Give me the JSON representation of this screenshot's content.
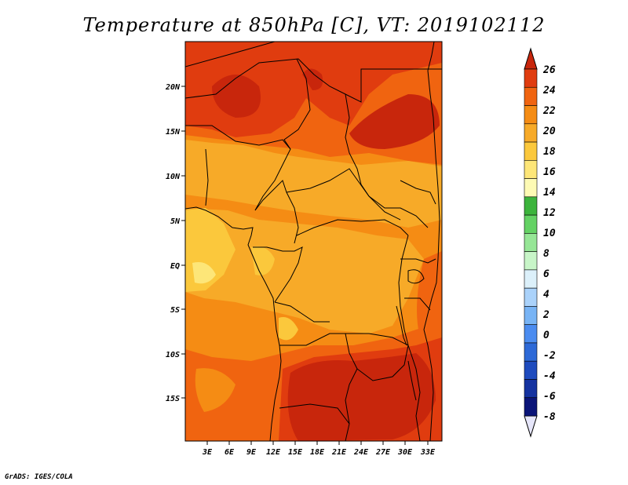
{
  "title": "Temperature at 850hPa [C], VT: 2019102112",
  "credit": "GrADS: IGES/COLA",
  "map": {
    "lon_range": [
      0,
      35
    ],
    "lat_range": [
      -20,
      24
    ],
    "y_ticks": [
      "20N",
      "15N",
      "10N",
      "5N",
      "EQ",
      "5S",
      "10S",
      "15S"
    ],
    "x_ticks": [
      "3E",
      "6E",
      "9E",
      "12E",
      "15E",
      "18E",
      "21E",
      "24E",
      "27E",
      "30E",
      "33E"
    ]
  },
  "colorbar": {
    "labels": [
      "26",
      "24",
      "22",
      "20",
      "18",
      "16",
      "14",
      "12",
      "10",
      "8",
      "6",
      "4",
      "2",
      "0",
      "-2",
      "-4",
      "-6",
      "-8"
    ],
    "colors": [
      "#c8260c",
      "#e03c0f",
      "#f06410",
      "#f58c14",
      "#f7aa28",
      "#fbc83c",
      "#fde678",
      "#fdfab4",
      "#3cb43c",
      "#64d264",
      "#96e696",
      "#c8f5c8",
      "#dcf0fa",
      "#aad2fa",
      "#78b4f5",
      "#4b8cf0",
      "#2d69d7",
      "#1e4bbe",
      "#1432a0",
      "#0a1478",
      "#e6e6fa"
    ]
  },
  "colors": {
    "frame": "#000000",
    "background": "#ffffff"
  }
}
